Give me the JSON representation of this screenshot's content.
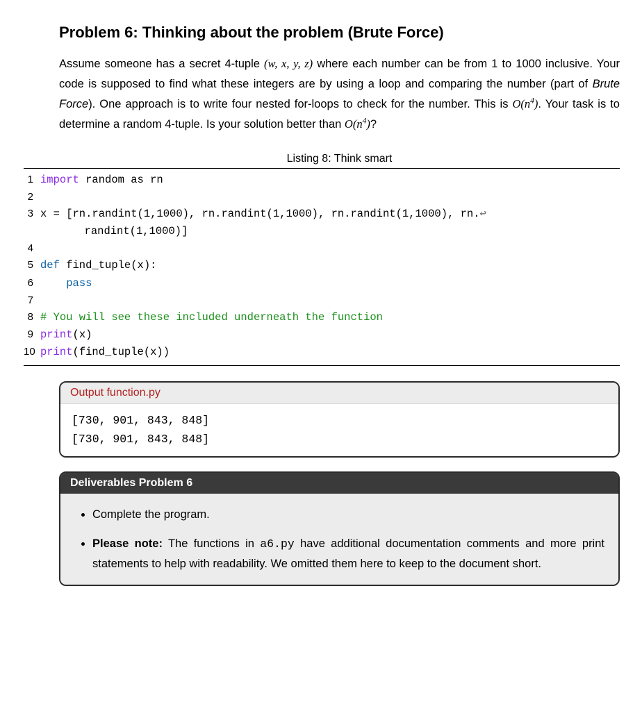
{
  "title": "Problem 6: Thinking about the problem (Brute Force)",
  "prose": {
    "p1a": "Assume someone has a secret 4-tuple ",
    "tuple_math": "(w, x, y, z)",
    "p1b": " where each number can be from 1 to 1000 inclusive. Your code is supposed to find what these integers are by using a loop and comparing the number (part of ",
    "bf": "Brute Force",
    "p1c": "). One approach is to write four nested for-loops to check for the number. This is ",
    "bigO1_a": "O(n",
    "bigO1_exp": "4",
    "bigO1_b": ")",
    "p1d": ". Your task is to determine a random 4-tuple. Is your solution better than ",
    "bigO2_a": "O(n",
    "bigO2_exp": "4",
    "bigO2_b": ")",
    "p1e": "?"
  },
  "listing": {
    "caption": "Listing 8: Think smart",
    "lines": {
      "1": {
        "ln": "1",
        "import_kw": "import",
        "rest": " random as rn"
      },
      "2": {
        "ln": "2",
        "blank": ""
      },
      "3": {
        "ln": "3",
        "a": "x = [rn.randint(1,1000), rn.randint(1,1000), rn.randint(1,1000), rn.",
        "arrow": "↩"
      },
      "3w": {
        "ln": "",
        "wrap": "randint(1,1000)]"
      },
      "4": {
        "ln": "4",
        "blank": ""
      },
      "5": {
        "ln": "5",
        "def_kw": "def",
        "rest": " find_tuple(x):"
      },
      "6": {
        "ln": "6",
        "indent": "    ",
        "pass_kw": "pass"
      },
      "7": {
        "ln": "7",
        "blank": ""
      },
      "8": {
        "ln": "8",
        "cmt": "# You will see these included underneath the function"
      },
      "9": {
        "ln": "9",
        "print_kw": "print",
        "rest": "(x)"
      },
      "10": {
        "ln": "10",
        "print_kw": "print",
        "rest": "(find_tuple(x))"
      }
    }
  },
  "output": {
    "header": "Output function.py",
    "line1": "[730, 901, 843, 848]",
    "line2": "[730, 901, 843, 848]"
  },
  "deliverables": {
    "header": "Deliverables Problem 6",
    "item1": "Complete the program.",
    "item2_prefix": "Please note:",
    "item2_a": " The functions in ",
    "item2_file": "a6.py",
    "item2_b": " have additional documentation comments and more print statements to help with readability. We omitted them here to keep to the document short."
  },
  "colors": {
    "import_kw": "#8a2be2",
    "def_kw": "#0b61a4",
    "print_kw": "#8a2be2",
    "comment": "#1a8f1a",
    "box_border": "#2b2b2b",
    "hdr_light_bg": "#ececec",
    "hdr_light_fg": "#b22222",
    "hdr_dark_bg": "#3a3a3a",
    "hdr_dark_fg": "#ffffff",
    "body_bg": "#ececec"
  },
  "typography": {
    "title_size_pt": 22,
    "prose_size_pt": 16.5,
    "code_size_pt": 15.5,
    "code_font": "Menlo, Consolas, Courier New, monospace",
    "prose_font": "Helvetica, Arial, sans-serif"
  }
}
